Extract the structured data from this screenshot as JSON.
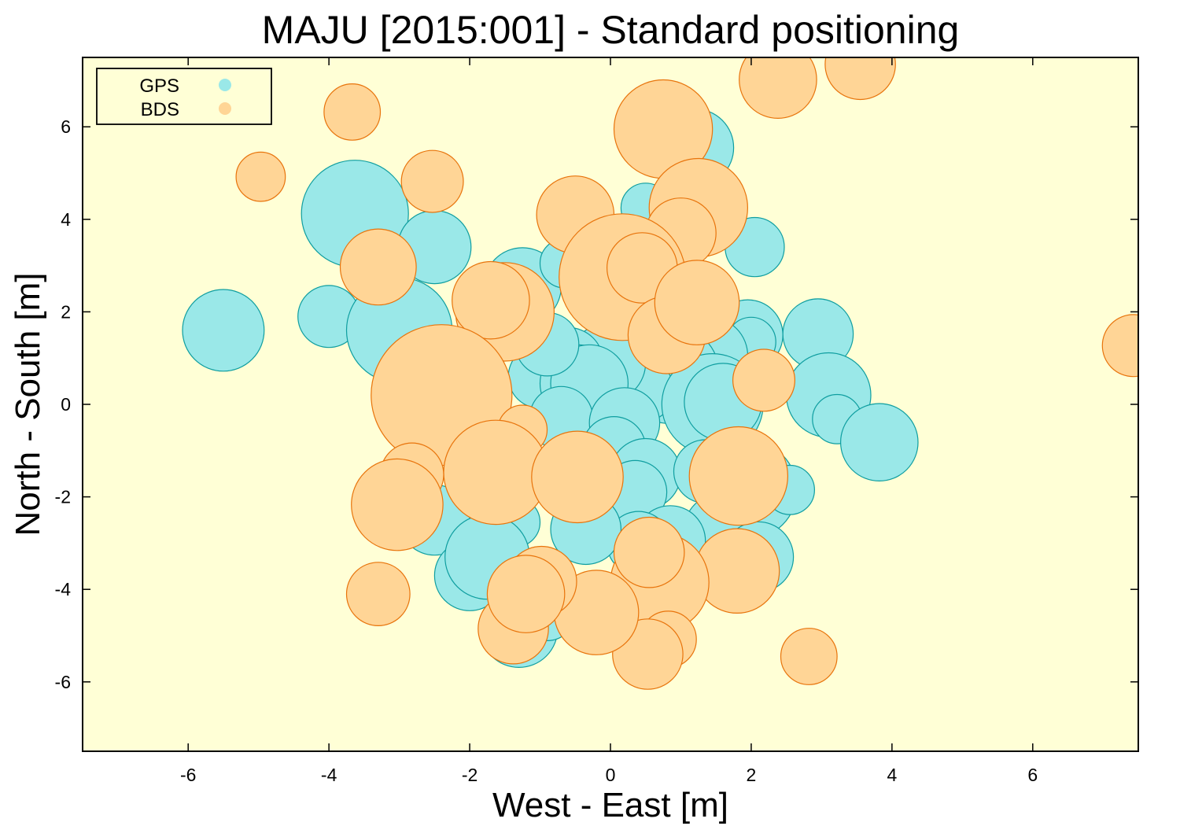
{
  "chart_data": {
    "type": "scatter",
    "title": "MAJU [2015:001] - Standard positioning",
    "xlabel": "West - East [m]",
    "ylabel": "North - South [m]",
    "xlim": [
      -7.5,
      7.5
    ],
    "ylim": [
      -7.5,
      7.5
    ],
    "x_ticks": [
      -6,
      -4,
      -2,
      0,
      2,
      4,
      6
    ],
    "y_ticks": [
      -6,
      -4,
      -2,
      0,
      2,
      4,
      6
    ],
    "grid": false,
    "legend_position": "top-left",
    "background": "#ffffd6",
    "series": [
      {
        "name": "GPS",
        "fill": "#9ae8e8",
        "stroke": "#0f9ea0",
        "points": [
          {
            "x": -5.5,
            "y": 1.6,
            "r": 0.58
          },
          {
            "x": -3.63,
            "y": 4.12,
            "r": 0.76
          },
          {
            "x": -2.5,
            "y": 3.4,
            "r": 0.52
          },
          {
            "x": -4.0,
            "y": 1.9,
            "r": 0.44
          },
          {
            "x": -3.0,
            "y": 1.6,
            "r": 0.75
          },
          {
            "x": -1.25,
            "y": 2.55,
            "r": 0.55
          },
          {
            "x": -0.65,
            "y": 3.05,
            "r": 0.35
          },
          {
            "x": 0.5,
            "y": 4.25,
            "r": 0.35
          },
          {
            "x": 1.2,
            "y": 5.55,
            "r": 0.55
          },
          {
            "x": 2.05,
            "y": 3.4,
            "r": 0.42
          },
          {
            "x": 1.95,
            "y": 1.5,
            "r": 0.5
          },
          {
            "x": 2.0,
            "y": 1.35,
            "r": 0.35
          },
          {
            "x": 1.4,
            "y": 1.05,
            "r": 0.55
          },
          {
            "x": 0.85,
            "y": 0.65,
            "r": 0.7
          },
          {
            "x": 0.3,
            "y": 0.6,
            "r": 0.5
          },
          {
            "x": 0.45,
            "y": 0.3,
            "r": 0.45
          },
          {
            "x": -0.05,
            "y": 0.9,
            "r": 0.55
          },
          {
            "x": -0.6,
            "y": 0.9,
            "r": 0.5
          },
          {
            "x": -1.0,
            "y": 0.6,
            "r": 0.45
          },
          {
            "x": -0.45,
            "y": 0.45,
            "r": 0.55
          },
          {
            "x": -0.3,
            "y": 0.45,
            "r": 0.55
          },
          {
            "x": -0.9,
            "y": 1.3,
            "r": 0.45
          },
          {
            "x": 1.45,
            "y": 0.0,
            "r": 0.72
          },
          {
            "x": 1.6,
            "y": 0.05,
            "r": 0.55
          },
          {
            "x": 2.95,
            "y": 1.52,
            "r": 0.5
          },
          {
            "x": 3.1,
            "y": 0.2,
            "r": 0.6
          },
          {
            "x": 3.22,
            "y": -0.32,
            "r": 0.35
          },
          {
            "x": 3.82,
            "y": -0.82,
            "r": 0.55
          },
          {
            "x": -0.7,
            "y": -0.3,
            "r": 0.45
          },
          {
            "x": 0.2,
            "y": -0.4,
            "r": 0.5
          },
          {
            "x": 0.05,
            "y": -0.95,
            "r": 0.45
          },
          {
            "x": 0.5,
            "y": -1.5,
            "r": 0.5
          },
          {
            "x": 0.35,
            "y": -1.9,
            "r": 0.45
          },
          {
            "x": 1.35,
            "y": -1.45,
            "r": 0.45
          },
          {
            "x": 1.95,
            "y": -1.85,
            "r": 0.7
          },
          {
            "x": 2.1,
            "y": -1.8,
            "r": 0.35
          },
          {
            "x": 2.55,
            "y": -1.85,
            "r": 0.35
          },
          {
            "x": 1.55,
            "y": -2.7,
            "r": 0.5
          },
          {
            "x": 2.1,
            "y": -3.3,
            "r": 0.5
          },
          {
            "x": 0.85,
            "y": -2.95,
            "r": 0.5
          },
          {
            "x": 0.4,
            "y": -3.0,
            "r": 0.45
          },
          {
            "x": -0.35,
            "y": -2.7,
            "r": 0.5
          },
          {
            "x": -1.35,
            "y": -2.55,
            "r": 0.35
          },
          {
            "x": -2.5,
            "y": -2.5,
            "r": 0.5
          },
          {
            "x": -2.0,
            "y": -3.7,
            "r": 0.5
          },
          {
            "x": -1.75,
            "y": -3.3,
            "r": 0.6
          },
          {
            "x": -1.3,
            "y": -4.85,
            "r": 0.55
          },
          {
            "x": -0.9,
            "y": -4.5,
            "r": 0.4
          },
          {
            "x": 0.5,
            "y": -4.95,
            "r": 0.45
          }
        ]
      },
      {
        "name": "BDS",
        "fill": "#ffd596",
        "stroke": "#e8740c",
        "points": [
          {
            "x": -3.67,
            "y": 6.32,
            "r": 0.4
          },
          {
            "x": -4.97,
            "y": 4.92,
            "r": 0.35
          },
          {
            "x": -2.53,
            "y": 4.82,
            "r": 0.44
          },
          {
            "x": -3.3,
            "y": 2.97,
            "r": 0.54
          },
          {
            "x": -0.5,
            "y": 4.1,
            "r": 0.55
          },
          {
            "x": 0.75,
            "y": 5.95,
            "r": 0.7
          },
          {
            "x": 2.38,
            "y": 7.02,
            "r": 0.55
          },
          {
            "x": 3.55,
            "y": 7.35,
            "r": 0.5
          },
          {
            "x": 1.25,
            "y": 4.25,
            "r": 0.7
          },
          {
            "x": 1.0,
            "y": 3.7,
            "r": 0.5
          },
          {
            "x": 0.17,
            "y": 2.75,
            "r": 0.9
          },
          {
            "x": 0.45,
            "y": 2.95,
            "r": 0.5
          },
          {
            "x": 0.8,
            "y": 1.5,
            "r": 0.55
          },
          {
            "x": 1.23,
            "y": 2.2,
            "r": 0.6
          },
          {
            "x": -1.5,
            "y": 2.0,
            "r": 0.7
          },
          {
            "x": -1.7,
            "y": 2.25,
            "r": 0.55
          },
          {
            "x": 2.18,
            "y": 0.52,
            "r": 0.44
          },
          {
            "x": 7.43,
            "y": 1.27,
            "r": 0.44
          },
          {
            "x": -2.4,
            "y": 0.2,
            "r": 1.0
          },
          {
            "x": -1.25,
            "y": -0.55,
            "r": 0.35
          },
          {
            "x": -2.82,
            "y": -1.52,
            "r": 0.45
          },
          {
            "x": -3.03,
            "y": -2.17,
            "r": 0.65
          },
          {
            "x": -1.63,
            "y": -1.47,
            "r": 0.74
          },
          {
            "x": -0.47,
            "y": -1.57,
            "r": 0.65
          },
          {
            "x": 1.82,
            "y": -1.55,
            "r": 0.7
          },
          {
            "x": 1.8,
            "y": -3.6,
            "r": 0.6
          },
          {
            "x": 0.7,
            "y": -3.85,
            "r": 0.7
          },
          {
            "x": 0.55,
            "y": -3.2,
            "r": 0.5
          },
          {
            "x": 0.82,
            "y": -5.08,
            "r": 0.4
          },
          {
            "x": 0.53,
            "y": -5.4,
            "r": 0.5
          },
          {
            "x": -0.2,
            "y": -4.5,
            "r": 0.6
          },
          {
            "x": -0.98,
            "y": -3.83,
            "r": 0.5
          },
          {
            "x": -1.38,
            "y": -4.85,
            "r": 0.5
          },
          {
            "x": -1.2,
            "y": -4.1,
            "r": 0.55
          },
          {
            "x": -3.3,
            "y": -4.1,
            "r": 0.45
          },
          {
            "x": 2.82,
            "y": -5.45,
            "r": 0.4
          }
        ]
      }
    ]
  }
}
